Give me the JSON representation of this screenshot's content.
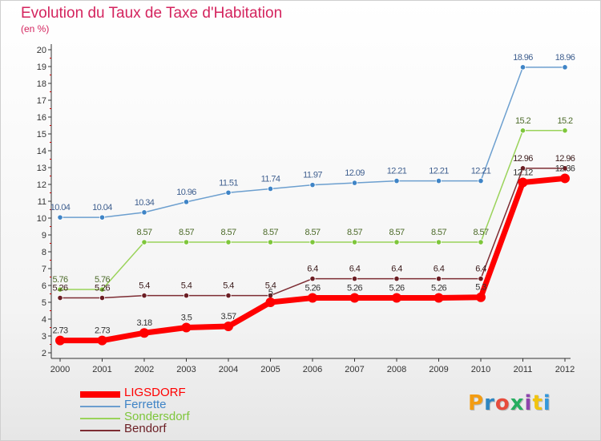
{
  "header": {
    "title": "Evolution du Taux de Taxe d'Habitation",
    "subtitle": "(en %)"
  },
  "logo": {
    "letters": [
      {
        "ch": "P",
        "color": "#f39c12"
      },
      {
        "ch": "r",
        "color": "#2e86c1"
      },
      {
        "ch": "o",
        "color": "#e74c3c"
      },
      {
        "ch": "x",
        "color": "#27ae60"
      },
      {
        "ch": "i",
        "color": "#8e44ad"
      },
      {
        "ch": "t",
        "color": "#f1c40f"
      },
      {
        "ch": "i",
        "color": "#3498db"
      }
    ]
  },
  "chart_data": {
    "type": "line",
    "title": "Evolution du Taux de Taxe d'Habitation",
    "ylabel": "(en %)",
    "xlabel": "",
    "x": [
      "2000",
      "2001",
      "2002",
      "2003",
      "2004",
      "2005",
      "2006",
      "2007",
      "2008",
      "2009",
      "2010",
      "2011",
      "2012"
    ],
    "ylim": [
      2,
      20
    ],
    "yticks": [
      2,
      3,
      4,
      5,
      6,
      7,
      8,
      9,
      10,
      11,
      12,
      13,
      14,
      15,
      16,
      17,
      18,
      19,
      20
    ],
    "grid": false,
    "legend_position": "bottom-left",
    "series": [
      {
        "name": "LIGSDORF",
        "color": "#ff0000",
        "marker": "#ff0000",
        "label_color": "#333333",
        "width": 7,
        "values": [
          2.73,
          2.73,
          3.18,
          3.5,
          3.57,
          5,
          5.26,
          5.26,
          5.26,
          5.26,
          5.3,
          12.12,
          12.36
        ],
        "labels": [
          "2.73",
          "2.73",
          "3.18",
          "3.5",
          "3.57",
          "5",
          "5.26",
          "5.26",
          "5.26",
          "5.26",
          "5.3",
          "12.12",
          "12.36"
        ]
      },
      {
        "name": "Ferrette",
        "color": "#6c9fcf",
        "marker": "#3f84c6",
        "label_color": "#3f5f8f",
        "width": 1.5,
        "values": [
          10.04,
          10.04,
          10.34,
          10.96,
          11.51,
          11.74,
          11.97,
          12.09,
          12.21,
          12.21,
          12.21,
          18.96,
          18.96
        ],
        "labels": [
          "10.04",
          "10.04",
          "10.34",
          "10.96",
          "11.51",
          "11.74",
          "11.97",
          "12.09",
          "12.21",
          "12.21",
          "12.21",
          "18.96",
          "18.96"
        ]
      },
      {
        "name": "Sondersdorf",
        "color": "#9ad35a",
        "marker": "#7ec63b",
        "label_color": "#4d6b2a",
        "width": 1.5,
        "values": [
          5.76,
          5.76,
          8.57,
          8.57,
          8.57,
          8.57,
          8.57,
          8.57,
          8.57,
          8.57,
          8.57,
          15.2,
          15.2
        ],
        "labels": [
          "5.76",
          "5.76",
          "8.57",
          "8.57",
          "8.57",
          "8.57",
          "8.57",
          "8.57",
          "8.57",
          "8.57",
          "8.57",
          "15.2",
          "15.2"
        ]
      },
      {
        "name": "Bendorf",
        "color": "#7d2c33",
        "marker": "#6b1e24",
        "label_color": "#3a1a1a",
        "width": 1.5,
        "values": [
          5.26,
          5.26,
          5.4,
          5.4,
          5.4,
          5.4,
          6.4,
          6.4,
          6.4,
          6.4,
          6.4,
          12.96,
          12.96
        ],
        "labels": [
          "5.26",
          "5.26",
          "5.4",
          "5.4",
          "5.4",
          "5.4",
          "6.4",
          "6.4",
          "6.4",
          "6.4",
          "6.4",
          "12.96",
          "12.96"
        ]
      }
    ]
  }
}
